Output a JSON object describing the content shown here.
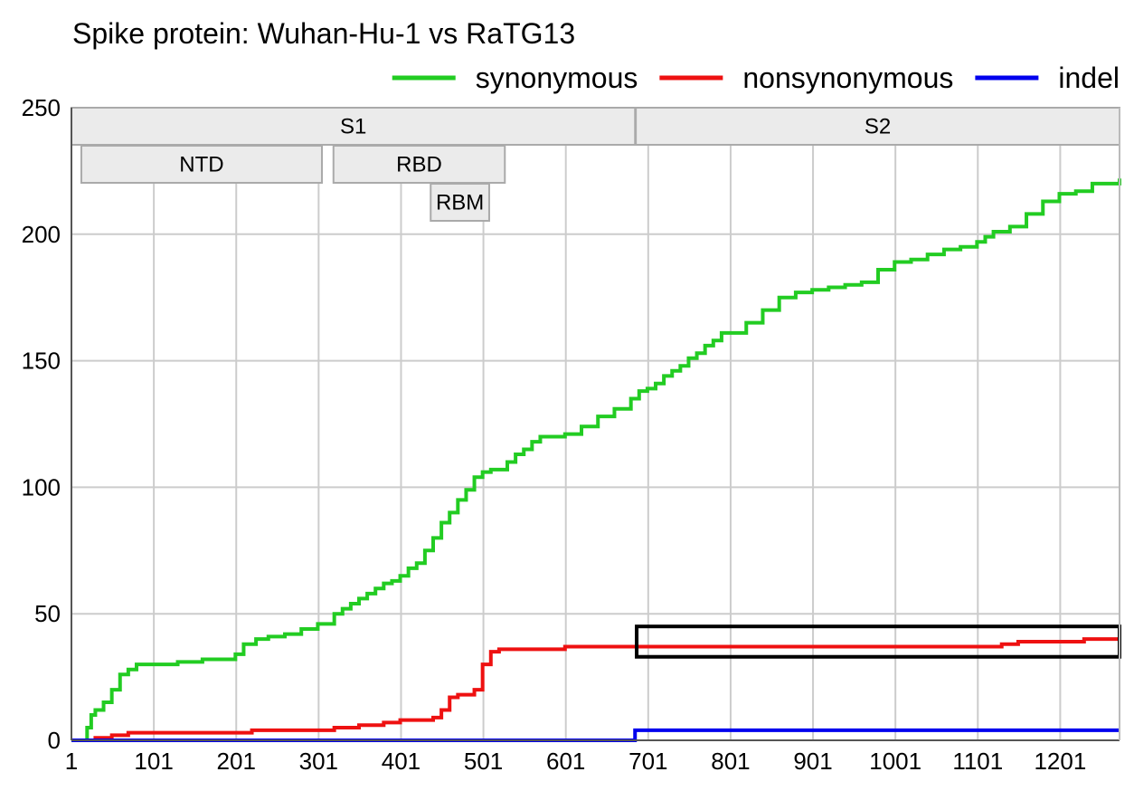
{
  "chart_data": {
    "type": "line",
    "title": "Spike protein: Wuhan-Hu-1 vs RaTG13",
    "xlabel": "",
    "ylabel": "",
    "xlim": [
      1,
      1273
    ],
    "ylim": [
      0,
      250
    ],
    "grid": true,
    "legend_position": "top-right",
    "x_ticks": [
      1,
      101,
      201,
      301,
      401,
      501,
      601,
      701,
      801,
      901,
      1001,
      1101,
      1201
    ],
    "y_ticks": [
      0,
      50,
      100,
      150,
      200,
      250
    ],
    "domains": [
      {
        "label": "S1",
        "start": 1,
        "end": 685,
        "row": 0
      },
      {
        "label": "S2",
        "start": 686,
        "end": 1273,
        "row": 0
      },
      {
        "label": "NTD",
        "start": 13,
        "end": 305,
        "row": 1
      },
      {
        "label": "RBD",
        "start": 319,
        "end": 527,
        "row": 1
      },
      {
        "label": "RBM",
        "start": 437,
        "end": 508,
        "row": 2
      }
    ],
    "series": [
      {
        "name": "synonymous",
        "color": "#22cc22",
        "step": true,
        "x": [
          1,
          15,
          20,
          25,
          30,
          40,
          50,
          60,
          70,
          80,
          90,
          100,
          110,
          130,
          160,
          200,
          210,
          225,
          240,
          260,
          280,
          300,
          320,
          330,
          340,
          350,
          360,
          370,
          380,
          390,
          400,
          410,
          420,
          430,
          440,
          450,
          460,
          470,
          480,
          490,
          500,
          510,
          530,
          540,
          550,
          560,
          570,
          580,
          600,
          620,
          640,
          660,
          680,
          690,
          700,
          710,
          720,
          730,
          740,
          750,
          760,
          770,
          780,
          790,
          800,
          820,
          840,
          860,
          880,
          900,
          920,
          940,
          960,
          980,
          1000,
          1020,
          1040,
          1060,
          1080,
          1100,
          1110,
          1120,
          1140,
          1160,
          1180,
          1200,
          1220,
          1240,
          1273
        ],
        "values": [
          0,
          0,
          5,
          10,
          12,
          15,
          20,
          26,
          28,
          30,
          30,
          30,
          30,
          31,
          32,
          34,
          38,
          40,
          41,
          42,
          44,
          46,
          50,
          52,
          54,
          56,
          58,
          60,
          62,
          63,
          65,
          68,
          70,
          75,
          80,
          86,
          90,
          95,
          99,
          104,
          106,
          107,
          110,
          113,
          115,
          118,
          120,
          120,
          121,
          124,
          128,
          131,
          135,
          138,
          139,
          141,
          144,
          146,
          148,
          151,
          153,
          156,
          158,
          161,
          161,
          165,
          170,
          175,
          177,
          178,
          179,
          180,
          181,
          186,
          189,
          190,
          192,
          194,
          195,
          197,
          199,
          201,
          203,
          208,
          213,
          216,
          217,
          220,
          222
        ]
      },
      {
        "name": "nonsynonymous",
        "color": "#ee1111",
        "step": true,
        "x": [
          1,
          30,
          50,
          70,
          100,
          150,
          200,
          220,
          260,
          300,
          320,
          350,
          380,
          400,
          420,
          440,
          450,
          460,
          470,
          480,
          490,
          500,
          510,
          520,
          550,
          600,
          650,
          700,
          800,
          900,
          1000,
          1100,
          1130,
          1150,
          1200,
          1230,
          1273
        ],
        "values": [
          0,
          1,
          2,
          3,
          3,
          3,
          3,
          4,
          4,
          4,
          5,
          6,
          7,
          8,
          8,
          9,
          12,
          17,
          18,
          18,
          20,
          30,
          35,
          36,
          36,
          37,
          37,
          37,
          37,
          37,
          37,
          37,
          38,
          39,
          39,
          40,
          40
        ]
      },
      {
        "name": "indel",
        "color": "#0000ee",
        "step": true,
        "x": [
          1,
          680,
          685,
          1273
        ],
        "values": [
          0,
          0,
          4,
          4
        ]
      }
    ],
    "annotations": [
      {
        "type": "box",
        "x_start": 687,
        "x_end": 1273,
        "y_start": 33,
        "y_end": 45,
        "color": "#000000"
      }
    ]
  }
}
